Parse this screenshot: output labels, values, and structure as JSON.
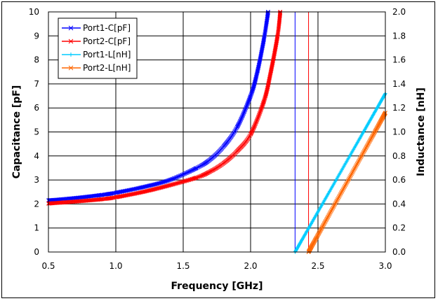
{
  "chart_data": {
    "type": "line",
    "xlabel": "Frequency [GHz]",
    "ylabel": "Capacitance [pF]",
    "y2label": "Inductance [nH]",
    "xlim": [
      0.5,
      3.0
    ],
    "ylim": [
      0,
      10
    ],
    "y2lim": [
      0,
      2.0
    ],
    "grid": true,
    "legend_position": "top-left",
    "x_ticks": [
      "0.5",
      "1.0",
      "1.5",
      "2.0",
      "2.5",
      "3.0"
    ],
    "y_ticks": [
      "0",
      "1",
      "2",
      "3",
      "4",
      "5",
      "6",
      "7",
      "8",
      "9",
      "10"
    ],
    "y2_ticks": [
      "0.0",
      "0.2",
      "0.4",
      "0.6",
      "0.8",
      "1.0",
      "1.2",
      "1.4",
      "1.6",
      "1.8",
      "2.0"
    ],
    "vertical_lines": [
      {
        "x": 2.33,
        "color": "#0000ff"
      },
      {
        "x": 2.43,
        "color": "#ff0000"
      }
    ],
    "series": [
      {
        "name": "Port1-C[pF]",
        "axis": "left",
        "color": "#0000ff",
        "marker": "x",
        "x": [
          0.5,
          0.7,
          0.9,
          1.0,
          1.2,
          1.4,
          1.6,
          1.7,
          1.8,
          1.9,
          2.0,
          2.05,
          2.1,
          2.13
        ],
        "y": [
          2.15,
          2.25,
          2.38,
          2.47,
          2.7,
          3.0,
          3.5,
          3.85,
          4.4,
          5.2,
          6.5,
          7.5,
          8.9,
          10
        ]
      },
      {
        "name": "Port2-C[pF]",
        "axis": "left",
        "color": "#ff0000",
        "marker": "x",
        "x": [
          0.5,
          0.7,
          0.9,
          1.0,
          1.2,
          1.4,
          1.6,
          1.7,
          1.8,
          1.9,
          2.0,
          2.1,
          2.15,
          2.2,
          2.22
        ],
        "y": [
          2.02,
          2.1,
          2.2,
          2.28,
          2.5,
          2.78,
          3.1,
          3.35,
          3.7,
          4.2,
          4.9,
          6.3,
          7.5,
          9.0,
          10
        ]
      },
      {
        "name": "Port1-L[nH]",
        "axis": "right",
        "color": "#00ccff",
        "marker": "+",
        "x": [
          2.33,
          3.0
        ],
        "y": [
          0.0,
          1.32
        ]
      },
      {
        "name": "Port2-L[nH]",
        "axis": "right",
        "color": "#ff6600",
        "marker": "x",
        "x": [
          2.43,
          3.0
        ],
        "y": [
          0.0,
          1.16
        ]
      }
    ]
  }
}
